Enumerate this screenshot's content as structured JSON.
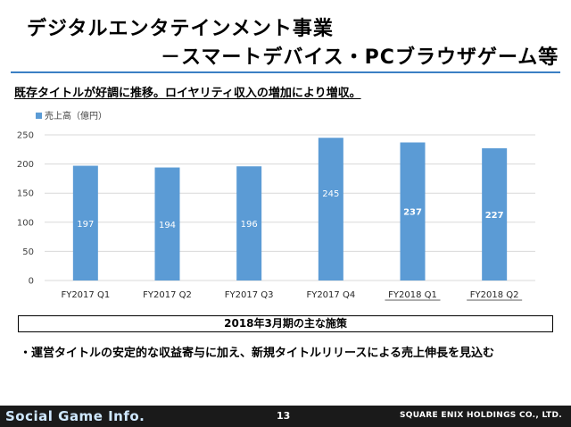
{
  "header": {
    "title_line1": "デジタルエンタテインメント事業",
    "title_line2": "－スマートデバイス・PCブラウザゲーム等"
  },
  "headline": "既存タイトルが好調に推移。ロイヤリティ収入の増加により増収。",
  "chart_data": {
    "type": "bar",
    "categories": [
      "FY2017 Q1",
      "FY2017 Q2",
      "FY2017 Q3",
      "FY2017 Q4",
      "FY2018  Q1",
      "FY2018  Q2"
    ],
    "series": [
      {
        "name": "売上高（億円）",
        "values": [
          197,
          194,
          196,
          245,
          237,
          227
        ]
      }
    ],
    "data_labels": [
      "197",
      "194",
      "196",
      "245",
      "237",
      "227"
    ],
    "yticks": [
      "0",
      "50",
      "100",
      "150",
      "200",
      "250"
    ],
    "ylim": [
      0,
      250
    ],
    "grid": true,
    "legend_position": "top-left",
    "bar_color": "#5b9bd5"
  },
  "policy": {
    "box_label": "2018年3月期の主な施策",
    "bullet": "・運営タイトルの安定的な収益寄与に加え、新規タイトルリリースによる売上伸長を見込む"
  },
  "footer": {
    "watermark": "Social Game Info.",
    "page_number": "13",
    "company": "SQUARE ENIX HOLDINGS CO., LTD."
  }
}
